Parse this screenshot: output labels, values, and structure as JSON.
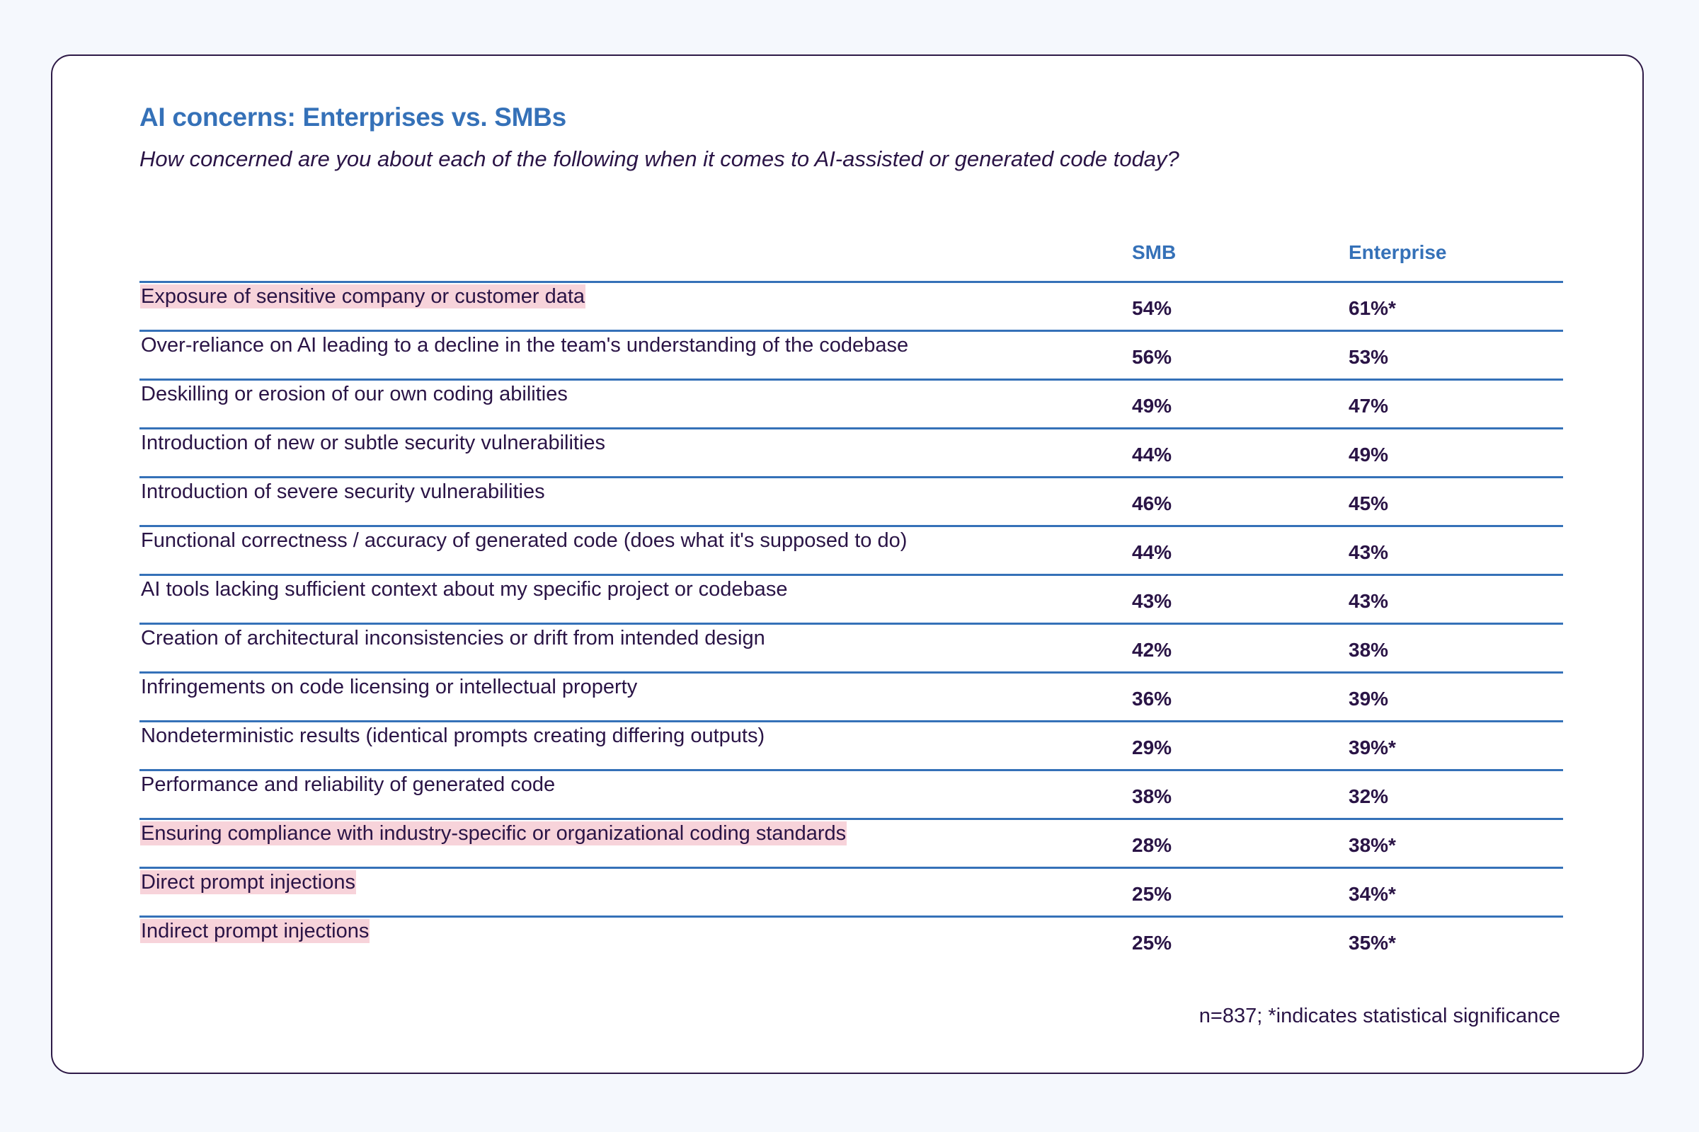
{
  "header": {
    "title": "AI concerns: Enterprises vs. SMBs",
    "subtitle": "How concerned are you about each of the following when it comes to AI-assisted or generated code today?"
  },
  "colors": {
    "accent": "#3571b8",
    "text": "#2a1446",
    "highlight": "#f7d3da",
    "background": "#f5f8fd"
  },
  "table": {
    "columns": [
      "",
      "SMB",
      "Enterprise"
    ],
    "rows": [
      {
        "label": "Exposure of sensitive company or customer data",
        "smb": "54%",
        "enterprise": "61%*",
        "highlighted": true
      },
      {
        "label": "Over-reliance on AI leading to a decline in the team's understanding of the codebase",
        "smb": "56%",
        "enterprise": "53%",
        "highlighted": false
      },
      {
        "label": "Deskilling or erosion of our own coding abilities",
        "smb": "49%",
        "enterprise": "47%",
        "highlighted": false
      },
      {
        "label": "Introduction of new or subtle security vulnerabilities",
        "smb": "44%",
        "enterprise": "49%",
        "highlighted": false
      },
      {
        "label": "Introduction of severe security vulnerabilities",
        "smb": "46%",
        "enterprise": "45%",
        "highlighted": false
      },
      {
        "label": "Functional correctness / accuracy of generated code (does what it's supposed to do)",
        "smb": "44%",
        "enterprise": "43%",
        "highlighted": false
      },
      {
        "label": "AI tools lacking sufficient context about my specific project or codebase",
        "smb": "43%",
        "enterprise": "43%",
        "highlighted": false
      },
      {
        "label": "Creation of architectural inconsistencies or drift from intended design",
        "smb": "42%",
        "enterprise": "38%",
        "highlighted": false
      },
      {
        "label": "Infringements on code licensing or intellectual property",
        "smb": "36%",
        "enterprise": "39%",
        "highlighted": false
      },
      {
        "label": "Nondeterministic results (identical prompts creating differing outputs)",
        "smb": "29%",
        "enterprise": "39%*",
        "highlighted": false
      },
      {
        "label": "Performance and reliability of generated code",
        "smb": "38%",
        "enterprise": "32%",
        "highlighted": false
      },
      {
        "label": "Ensuring compliance with industry-specific or organizational coding standards",
        "smb": "28%",
        "enterprise": "38%*",
        "highlighted": true
      },
      {
        "label": "Direct prompt injections",
        "smb": "25%",
        "enterprise": "34%*",
        "highlighted": true
      },
      {
        "label": "Indirect prompt injections",
        "smb": "25%",
        "enterprise": "35%*",
        "highlighted": true
      }
    ]
  },
  "footnote": "n=837; *indicates statistical significance"
}
